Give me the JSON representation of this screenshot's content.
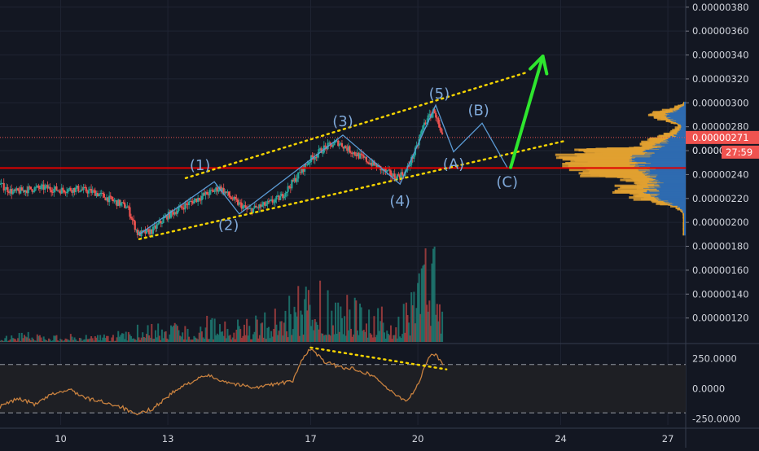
{
  "chart_data": {
    "type": "candlestick",
    "x_axis": {
      "type": "date",
      "tick_labels": [
        "10",
        "13",
        "17",
        "20",
        "24",
        "27"
      ],
      "tick_days": [
        10,
        13,
        17,
        20,
        24,
        27
      ],
      "range": [
        8.3,
        27.5
      ]
    },
    "price_axis": {
      "range": [
        1e-06,
        3.86e-06
      ],
      "tick_labels": [
        "0.00000120",
        "0.00000140",
        "0.00000160",
        "0.00000180",
        "0.00000200",
        "0.00000220",
        "0.00000240",
        "0.00000260",
        "0.00000280",
        "0.00000300",
        "0.00000320",
        "0.00000340",
        "0.00000360",
        "0.00000380"
      ],
      "tick_values": [
        1.2e-06,
        1.4e-06,
        1.6e-06,
        1.8e-06,
        2e-06,
        2.2e-06,
        2.4e-06,
        2.6e-06,
        2.8e-06,
        3e-06,
        3.2e-06,
        3.4e-06,
        3.6e-06,
        3.8e-06
      ],
      "current_price_label": "0.00000271",
      "current_price": 2.71e-06,
      "countdown_label": "27:59",
      "countdown_price_label": "0.000002",
      "resistance_price": 2.455e-06
    },
    "price_path": [
      [
        8.3,
        2.32e-06
      ],
      [
        8.7,
        2.25e-06
      ],
      [
        9.2,
        2.28e-06
      ],
      [
        9.6,
        2.29e-06
      ],
      [
        10.0,
        2.27e-06
      ],
      [
        10.5,
        2.28e-06
      ],
      [
        11.0,
        2.25e-06
      ],
      [
        11.5,
        2.18e-06
      ],
      [
        11.9,
        2.13e-06
      ],
      [
        12.2,
        1.9e-06
      ],
      [
        12.6,
        1.93e-06
      ],
      [
        13.0,
        2.05e-06
      ],
      [
        13.5,
        2.14e-06
      ],
      [
        14.0,
        2.22e-06
      ],
      [
        14.5,
        2.29e-06
      ],
      [
        14.9,
        2.18e-06
      ],
      [
        15.3,
        2.1e-06
      ],
      [
        15.8,
        2.15e-06
      ],
      [
        16.2,
        2.21e-06
      ],
      [
        16.6,
        2.36e-06
      ],
      [
        17.0,
        2.52e-06
      ],
      [
        17.4,
        2.62e-06
      ],
      [
        17.8,
        2.67e-06
      ],
      [
        18.2,
        2.59e-06
      ],
      [
        18.7,
        2.5e-06
      ],
      [
        19.1,
        2.43e-06
      ],
      [
        19.4,
        2.38e-06
      ],
      [
        19.7,
        2.42e-06
      ],
      [
        20.0,
        2.62e-06
      ],
      [
        20.2,
        2.82e-06
      ],
      [
        20.5,
        2.94e-06
      ],
      [
        20.7,
        2.71e-06
      ]
    ],
    "volume_path": [
      [
        8.3,
        0.06
      ],
      [
        9.0,
        0.08
      ],
      [
        9.8,
        0.05
      ],
      [
        10.5,
        0.07
      ],
      [
        11.2,
        0.06
      ],
      [
        11.9,
        0.1
      ],
      [
        12.3,
        0.15
      ],
      [
        13.0,
        0.14
      ],
      [
        14.0,
        0.2
      ],
      [
        15.0,
        0.18
      ],
      [
        16.0,
        0.25
      ],
      [
        16.7,
        0.45
      ],
      [
        17.0,
        0.55
      ],
      [
        17.4,
        0.5
      ],
      [
        17.8,
        0.48
      ],
      [
        18.3,
        0.35
      ],
      [
        18.8,
        0.3
      ],
      [
        19.3,
        0.22
      ],
      [
        19.8,
        0.4
      ],
      [
        20.1,
        0.62
      ],
      [
        20.4,
        1.0
      ],
      [
        20.7,
        0.45
      ]
    ],
    "oscillator": {
      "levels": [
        200,
        -200
      ],
      "range": [
        -300,
        360
      ],
      "tick_labels": [
        "250.0000",
        "0.0000",
        "-250.0000"
      ],
      "tick_values": [
        250,
        0,
        -250
      ],
      "path": [
        [
          8.3,
          -150
        ],
        [
          8.8,
          -80
        ],
        [
          9.3,
          -130
        ],
        [
          9.8,
          -40
        ],
        [
          10.3,
          -10
        ],
        [
          10.7,
          -80
        ],
        [
          11.2,
          -110
        ],
        [
          11.7,
          -150
        ],
        [
          12.1,
          -220
        ],
        [
          12.6,
          -160
        ],
        [
          13.1,
          -40
        ],
        [
          13.6,
          50
        ],
        [
          14.1,
          110
        ],
        [
          14.5,
          70
        ],
        [
          15.0,
          30
        ],
        [
          15.5,
          10
        ],
        [
          16.0,
          40
        ],
        [
          16.5,
          60
        ],
        [
          16.8,
          270
        ],
        [
          17.0,
          330
        ],
        [
          17.4,
          220
        ],
        [
          17.8,
          180
        ],
        [
          18.3,
          160
        ],
        [
          18.8,
          100
        ],
        [
          19.3,
          -40
        ],
        [
          19.7,
          -100
        ],
        [
          20.0,
          30
        ],
        [
          20.3,
          260
        ],
        [
          20.5,
          290
        ],
        [
          20.7,
          200
        ]
      ]
    },
    "elliott_wave": [
      [
        12.2,
        1.9e-06
      ],
      [
        14.3,
        2.34e-06
      ],
      [
        15.0,
        2.07e-06
      ],
      [
        17.9,
        2.73e-06
      ],
      [
        19.5,
        2.32e-06
      ],
      [
        20.5,
        2.98e-06
      ],
      [
        21.0,
        2.59e-06
      ],
      [
        21.8,
        2.83e-06
      ],
      [
        22.5,
        2.46e-06
      ]
    ],
    "projection_arrow": [
      [
        22.6,
        2.46e-06
      ],
      [
        23.5,
        3.39e-06
      ]
    ],
    "upper_channel": [
      [
        13.5,
        2.37e-06
      ],
      [
        23.0,
        3.25e-06
      ]
    ],
    "lower_channel": [
      [
        12.2,
        1.86e-06
      ],
      [
        24.1,
        2.68e-06
      ]
    ],
    "oscillator_trend": [
      [
        17.0,
        340
      ],
      [
        20.8,
        160
      ]
    ],
    "wave_labels": [
      {
        "text": "(1)",
        "x": 13.9,
        "y": 2.47e-06
      },
      {
        "text": "(2)",
        "x": 14.7,
        "y": 1.97e-06
      },
      {
        "text": "(3)",
        "x": 17.9,
        "y": 2.84e-06
      },
      {
        "text": "(4)",
        "x": 19.5,
        "y": 2.17e-06
      },
      {
        "text": "(5)",
        "x": 20.6,
        "y": 3.07e-06
      },
      {
        "text": "(A)",
        "x": 21.0,
        "y": 2.48e-06
      },
      {
        "text": "(B)",
        "x": 21.7,
        "y": 2.93e-06
      },
      {
        "text": "(C)",
        "x": 22.5,
        "y": 2.33e-06
      }
    ],
    "colors": {
      "background": "#131722",
      "up": "#26a69a",
      "down": "#ef5350",
      "wave": "#5b9bd5",
      "channel": "#f5d300",
      "arrow": "#2ee62e",
      "resistance": "#e00000",
      "oscillator": "#c8813f",
      "vp_blue": "#2f6bb0",
      "vp_orange": "#e0a030"
    }
  }
}
